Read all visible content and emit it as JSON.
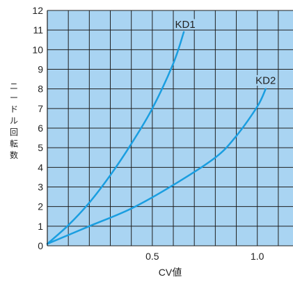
{
  "chart_data": {
    "type": "line",
    "title": "",
    "xlabel": "CV値",
    "ylabel": "ニードル回転数",
    "xlim": [
      0,
      1.17
    ],
    "ylim": [
      0,
      12
    ],
    "x_ticks": [
      0.5,
      1.0
    ],
    "x_tick_labels": [
      "0.5",
      "1.0"
    ],
    "y_ticks": [
      0,
      1,
      2,
      3,
      4,
      5,
      6,
      7,
      8,
      9,
      10,
      11,
      12
    ],
    "y_tick_labels": [
      "0",
      "1",
      "2",
      "3",
      "4",
      "5",
      "6",
      "7",
      "8",
      "9",
      "10",
      "11",
      "12"
    ],
    "grid": true,
    "legend": "none",
    "colors": {
      "plot_background": "#a9d4f2",
      "grid": "#1f1f1f",
      "line": "#1a9ee0"
    },
    "series": [
      {
        "name": "KD1",
        "points": [
          [
            0.0,
            0.1
          ],
          [
            0.1,
            1.05
          ],
          [
            0.2,
            2.2
          ],
          [
            0.3,
            3.6
          ],
          [
            0.4,
            5.2
          ],
          [
            0.5,
            7.0
          ],
          [
            0.6,
            9.3
          ],
          [
            0.65,
            10.9
          ]
        ]
      },
      {
        "name": "KD2",
        "points": [
          [
            0.0,
            0.1
          ],
          [
            0.2,
            1.0
          ],
          [
            0.4,
            1.9
          ],
          [
            0.6,
            3.1
          ],
          [
            0.8,
            4.5
          ],
          [
            0.9,
            5.6
          ],
          [
            1.0,
            7.1
          ],
          [
            1.04,
            8.0
          ]
        ]
      }
    ]
  }
}
